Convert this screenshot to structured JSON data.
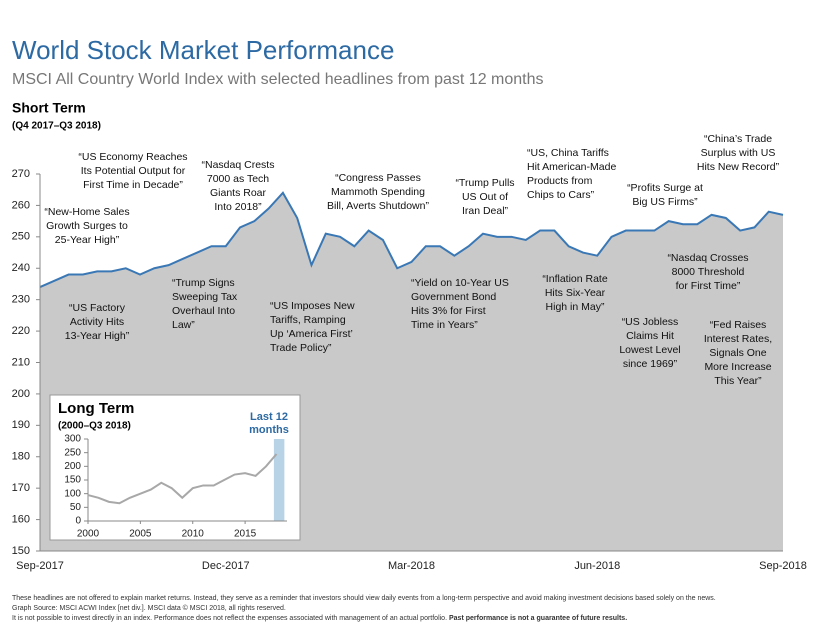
{
  "chart_data": [
    {
      "type": "area",
      "title": "World Stock Market Performance",
      "subtitle": "MSCI All Country World Index with selected headlines from past 12 months",
      "panel_title": "Short Term",
      "panel_subtitle": "(Q4 2017–Q3 2018)",
      "categories": [
        "Sep-2017",
        null,
        null,
        null,
        null,
        null,
        null,
        null,
        null,
        null,
        null,
        null,
        null,
        "Dec-2017",
        null,
        null,
        null,
        null,
        null,
        null,
        null,
        null,
        null,
        null,
        null,
        null,
        "Mar-2018",
        null,
        null,
        null,
        null,
        null,
        null,
        null,
        null,
        null,
        null,
        null,
        null,
        "Jun-2018",
        null,
        null,
        null,
        null,
        null,
        null,
        null,
        null,
        null,
        null,
        null,
        null,
        "Sep-2018"
      ],
      "values": [
        234,
        236,
        238,
        238,
        239,
        239,
        240,
        238,
        240,
        241,
        243,
        245,
        247,
        247,
        253,
        255,
        259,
        264,
        256,
        241,
        251,
        250,
        247,
        252,
        249,
        240,
        242,
        247,
        247,
        244,
        247,
        251,
        250,
        250,
        249,
        252,
        252,
        247,
        245,
        244,
        250,
        252,
        252,
        252,
        255,
        254,
        254,
        257,
        256,
        252,
        253,
        258,
        257
      ],
      "color": "#3a78b5",
      "fill": "#c9c9c9",
      "ylim": [
        150,
        270
      ],
      "yticks": [
        150,
        160,
        170,
        180,
        190,
        200,
        210,
        220,
        230,
        240,
        250,
        260,
        270
      ],
      "annotations": [
        [
          "“New-Home Sales",
          "Growth Surges to",
          "25-Year High”"
        ],
        [
          "“US Economy Reaches",
          "Its Potential Output for",
          "First Time in Decade”"
        ],
        [
          "“US Factory",
          "Activity Hits",
          "13-Year High”"
        ],
        [
          "“Nasdaq Crests",
          "7000 as Tech",
          "Giants Roar",
          "Into 2018”"
        ],
        [
          "“Trump Signs",
          "Sweeping Tax",
          "Overhaul Into",
          "Law”"
        ],
        [
          "“US Imposes New",
          "Tariffs, Ramping",
          "Up ‘America First’",
          "Trade Policy”"
        ],
        [
          "“Congress Passes",
          "Mammoth Spending",
          "Bill, Averts Shutdown”"
        ],
        [
          "“Trump Pulls",
          "US Out of",
          "Iran Deal”"
        ],
        [
          "“Yield on 10-Year US",
          "Government Bond",
          "Hits 3% for First",
          "Time in Years”"
        ],
        [
          "“US, China Tariffs",
          "Hit American-Made",
          "Products from",
          "Chips to Cars”"
        ],
        [
          "“Inflation Rate",
          "Hits Six-Year",
          "High in May”"
        ],
        [
          "“Profits Surge at",
          "Big US Firms”"
        ],
        [
          "“US Jobless",
          "Claims Hit",
          "Lowest Level",
          "since 1969”"
        ],
        [
          "“Nasdaq Crosses",
          "8000 Threshold",
          "for First Time”"
        ],
        [
          "“China’s Trade",
          "Surplus with US",
          "Hits New Record”"
        ],
        [
          "“Fed Raises",
          "Interest Rates,",
          "Signals One",
          "More Increase",
          "This Year”"
        ]
      ],
      "footnotes": [
        "These headlines are not offered to explain market returns. Instead, they serve as a reminder that investors should view daily events from a long-term perspective and avoid making investment decisions based solely on the news.",
        "Graph Source: MSCI ACWI Index [net div.]. MSCI data © MSCI 2018, all rights reserved.",
        "It is not possible to invest directly in an index. Performance does not reflect the expenses associated with management of an actual portfolio.",
        "Past performance is not a guarantee of future results."
      ]
    },
    {
      "type": "line",
      "title": "Long Term",
      "subtitle": "(2000–Q3 2018)",
      "highlight_label": [
        "Last 12",
        "months"
      ],
      "x": [
        2000,
        2001,
        2002,
        2003,
        2004,
        2005,
        2006,
        2007,
        2008,
        2009,
        2010,
        2011,
        2012,
        2013,
        2014,
        2015,
        2016,
        2017,
        2018
      ],
      "values": [
        95,
        85,
        70,
        65,
        85,
        100,
        115,
        140,
        120,
        85,
        120,
        130,
        130,
        150,
        170,
        175,
        165,
        200,
        245
      ],
      "color": "#a8a8a8",
      "highlight_color": "#b8d3e6",
      "highlight": [
        2017.75,
        2018.75
      ],
      "xlim": [
        2000,
        2019
      ],
      "xticks": [
        2000,
        2005,
        2010,
        2015
      ],
      "ylim": [
        0,
        300
      ],
      "yticks": [
        0,
        50,
        100,
        150,
        200,
        250,
        300
      ]
    }
  ]
}
